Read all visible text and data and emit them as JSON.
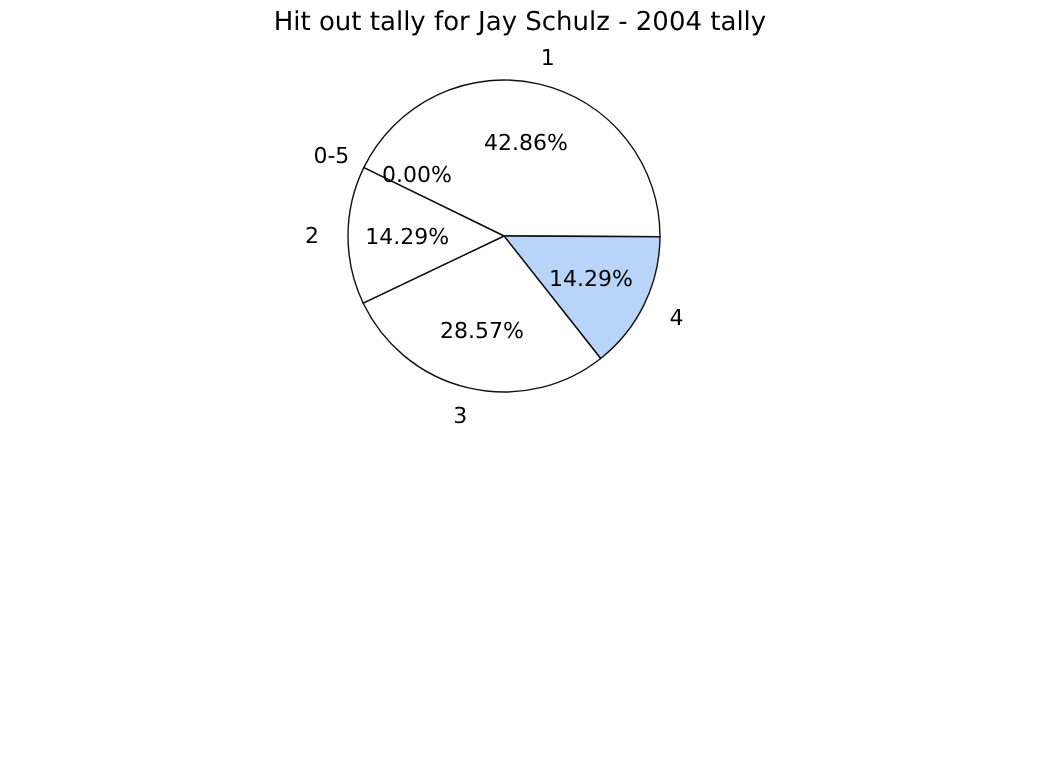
{
  "chart_data": {
    "type": "pie",
    "title": "Hit out tally for Jay Schulz - 2004 tally",
    "categories": [
      "1",
      "4",
      "3",
      "2",
      "0-5"
    ],
    "values": [
      42.86,
      14.29,
      28.57,
      14.29,
      0
    ],
    "colors": [
      "#ffffff",
      "#b8d4f8",
      "#ffffff",
      "#ffffff",
      "#ffffff"
    ],
    "value_labels": [
      "42.86%",
      "14.29%",
      "28.57%",
      "14.29%",
      "0.00%"
    ]
  }
}
